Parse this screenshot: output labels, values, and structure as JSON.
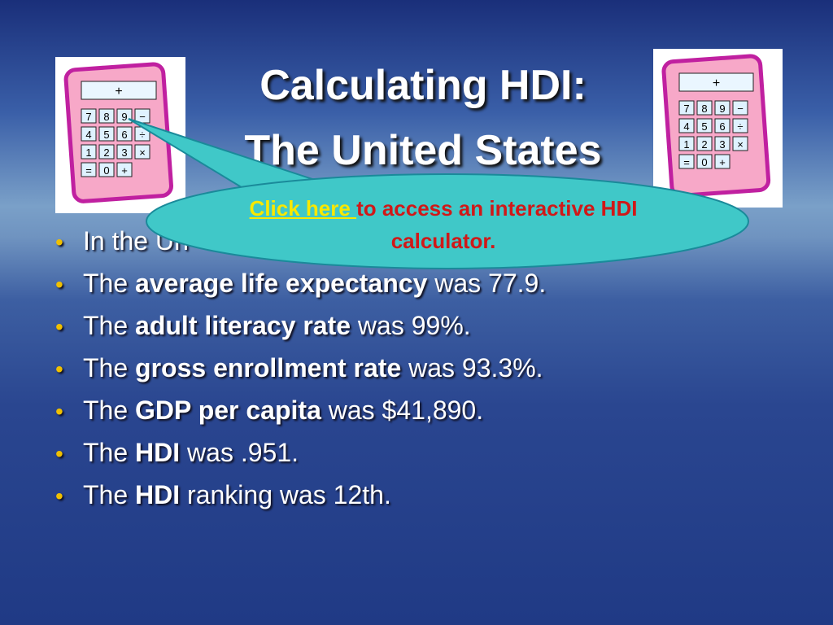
{
  "title": {
    "line1": "Calculating HDI:",
    "line2": "The United States"
  },
  "callout": {
    "link": "Click here ",
    "text": "to access an interactive HDI calculator."
  },
  "calculator": {
    "display": "+",
    "keys": [
      [
        "7",
        "8",
        "9",
        "−"
      ],
      [
        "4",
        "5",
        "6",
        "÷"
      ],
      [
        "1",
        "2",
        "3",
        "×"
      ],
      [
        "=",
        "0",
        "+"
      ]
    ]
  },
  "bullets": [
    {
      "pre": "In the Un",
      "bold": "",
      "post": ""
    },
    {
      "pre": "The ",
      "bold": "average life expectancy",
      "post": " was 77.9."
    },
    {
      "pre": "The ",
      "bold": "adult literacy rate",
      "post": " was 99%."
    },
    {
      "pre": "The ",
      "bold": "gross enrollment rate",
      "post": " was 93.3%."
    },
    {
      "pre": "The ",
      "bold": "GDP per capita",
      "post": " was $41,890."
    },
    {
      "pre": "The ",
      "bold": "HDI",
      "post": " was .951."
    },
    {
      "pre": "The ",
      "bold": "HDI",
      "post": " ranking was 12th."
    }
  ]
}
